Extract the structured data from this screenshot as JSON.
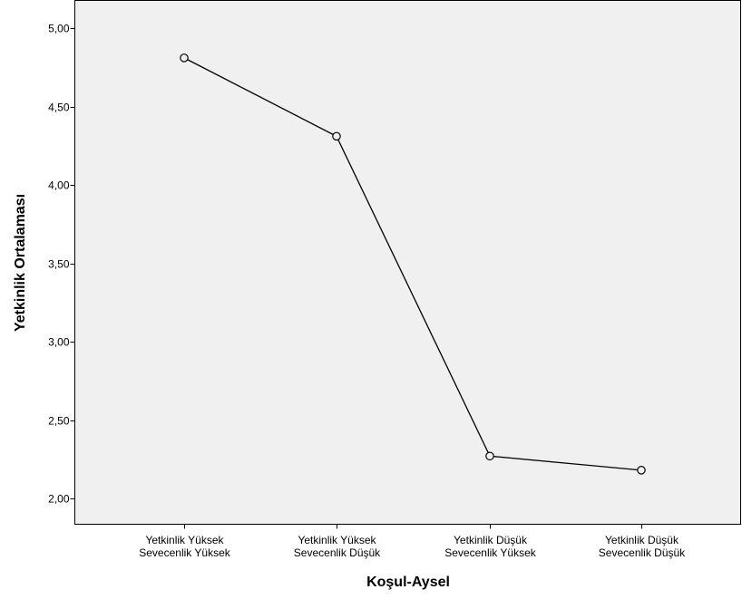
{
  "chart_data": {
    "type": "line",
    "categories": [
      [
        "Yetkinlik Yüksek",
        "Sevecenlik Yüksek"
      ],
      [
        "Yetkinlik Yüksek",
        "Sevecenlik Düşük"
      ],
      [
        "Yetkinlik Düşük",
        "Sevecenlik Yüksek"
      ],
      [
        "Yetkinlik Düşük",
        "Sevecenlik Düşük"
      ]
    ],
    "values": [
      4.81,
      4.31,
      2.27,
      2.18
    ],
    "xlabel": "Koşul-Aysel",
    "ylabel": "Yetkinlik Ortalaması",
    "ylim": [
      2.0,
      5.0
    ],
    "yticks": [
      "5,00",
      "4,50",
      "4,00",
      "3,50",
      "3,00",
      "2,50",
      "2,00"
    ],
    "ytick_values": [
      5.0,
      4.5,
      4.0,
      3.5,
      3.0,
      2.5,
      2.0
    ],
    "grid": false,
    "colors": {
      "plot_background": "#f0f0f0",
      "line": "#000000",
      "marker_fill": "#f0f0f0"
    }
  }
}
